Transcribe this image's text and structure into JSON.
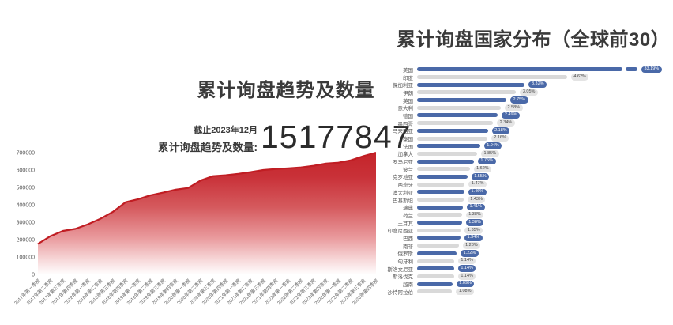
{
  "header": {
    "left_title": "累计询盘趋势及数量",
    "right_title": "累计询盘国家分布（全球前30）",
    "as_of_label": "截止2023年12月",
    "total_label": "累计询盘趋势及数量:",
    "total_value": "15177847"
  },
  "colors": {
    "area_line": "#c01d23",
    "area_top": "#c4242a",
    "bar_blue": "#4a69a8",
    "bar_gray": "#d9d9d9",
    "axis_text": "#555555",
    "title_text": "#3a3a3a"
  },
  "chart_data": [
    {
      "type": "area",
      "title": "累计询盘趋势及数量",
      "xlabel": "",
      "ylabel": "",
      "ylim": [
        0,
        700000
      ],
      "yticks": [
        0,
        100000,
        200000,
        300000,
        400000,
        500000,
        600000,
        700000
      ],
      "grid": false,
      "x": [
        "2017年第一季度",
        "2017年第二季度",
        "2017年第三季度",
        "2017年第四季度",
        "2018年第一季度",
        "2018年第二季度",
        "2018年第三季度",
        "2018年第四季度",
        "2019年第一季度",
        "2019年第二季度",
        "2019年第三季度",
        "2019年第四季度",
        "2020年第一季度",
        "2020年第二季度",
        "2020年第三季度",
        "2020年第四季度",
        "2021年第一季度",
        "2021年第二季度",
        "2021年第三季度",
        "2021年第四季度",
        "2022年第一季度",
        "2022年第二季度",
        "2022年第三季度",
        "2022年第四季度",
        "2023年第一季度",
        "2023年第二季度",
        "2023年第三季度",
        "2023年第四季度"
      ],
      "values": [
        175000,
        220000,
        250000,
        262000,
        288000,
        320000,
        360000,
        415000,
        432000,
        455000,
        470000,
        487000,
        497000,
        540000,
        565000,
        570000,
        578000,
        588000,
        600000,
        606000,
        610000,
        615000,
        624000,
        637000,
        642000,
        656000,
        680000,
        700000
      ]
    },
    {
      "type": "bar",
      "orientation": "horizontal",
      "title": "累计询盘国家分布（全球前30）",
      "axis_break_on_first": true,
      "categories": [
        "美国",
        "印度",
        "保加利亚",
        "伊朗",
        "英国",
        "意大利",
        "德国",
        "墨西哥",
        "马来西亚",
        "泰国",
        "法国",
        "加拿大",
        "罗马尼亚",
        "波兰",
        "克罗地亚",
        "西班牙",
        "澳大利亚",
        "巴基斯坦",
        "瑞典",
        "荷兰",
        "土耳其",
        "印度尼西亚",
        "巴西",
        "南非",
        "俄罗斯",
        "匈牙利",
        "斯洛文尼亚",
        "斯洛伐克",
        "越南",
        "沙特阿拉伯"
      ],
      "values": [
        33.19,
        4.62,
        3.32,
        3.05,
        2.75,
        2.58,
        2.49,
        2.34,
        2.18,
        2.16,
        1.94,
        1.85,
        1.75,
        1.62,
        1.55,
        1.47,
        1.46,
        1.43,
        1.41,
        1.38,
        1.38,
        1.35,
        1.34,
        1.28,
        1.22,
        1.14,
        1.14,
        1.14,
        1.09,
        1.08
      ],
      "labels": [
        "33.19%",
        "4.62%",
        "3.32%",
        "3.05%",
        "2.75%",
        "2.58%",
        "2.49%",
        "2.34%",
        "2.18%",
        "2.16%",
        "1.94%",
        "1.85%",
        "1.75%",
        "1.62%",
        "1.55%",
        "1.47%",
        "1.46%",
        "1.43%",
        "1.41%",
        "1.38%",
        "1.38%",
        "1.35%",
        "1.34%",
        "1.28%",
        "1.22%",
        "1.14%",
        "1.14%",
        "1.14%",
        "1.09%",
        "1.08%"
      ],
      "bar_colors": [
        "blue",
        "gray",
        "blue",
        "gray",
        "blue",
        "gray",
        "blue",
        "gray",
        "blue",
        "gray",
        "blue",
        "gray",
        "blue",
        "gray",
        "blue",
        "gray",
        "blue",
        "gray",
        "blue",
        "gray",
        "blue",
        "gray",
        "blue",
        "gray",
        "blue",
        "gray",
        "blue",
        "gray",
        "blue",
        "gray"
      ]
    }
  ]
}
